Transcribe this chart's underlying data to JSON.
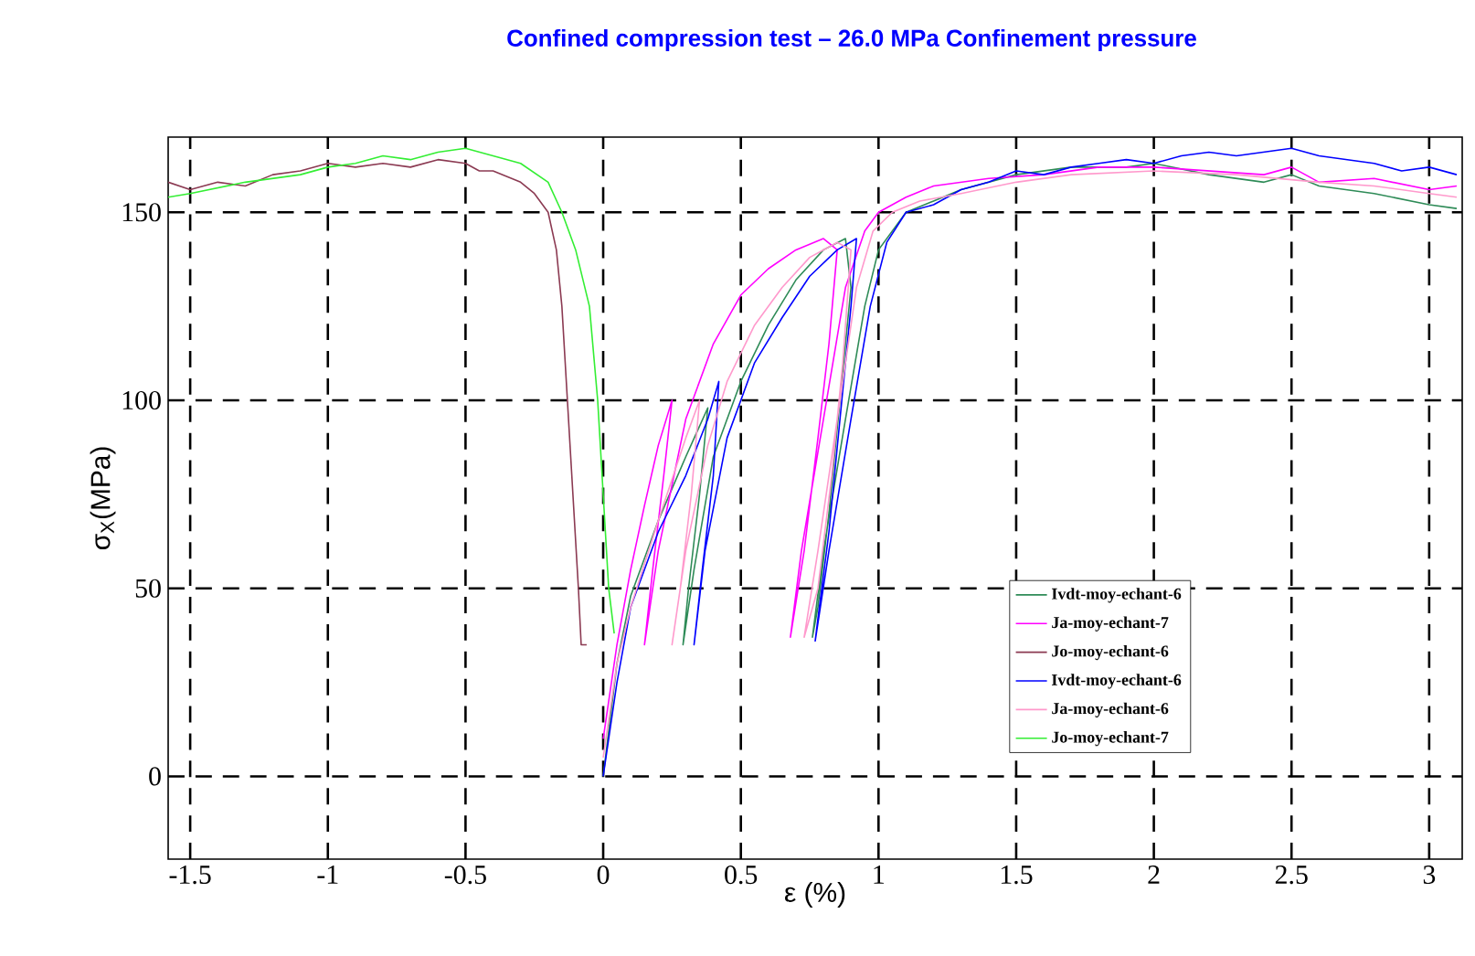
{
  "chart_data": {
    "type": "line",
    "title": "Confined compression test – 26.0 MPa Confinement pressure",
    "xlabel": "ε (%)",
    "ylabel": "σ$_{X}$(MPa)",
    "xlim": [
      -1.58,
      3.12
    ],
    "ylim": [
      -22,
      170
    ],
    "xticks": [
      -1.5,
      -1,
      -0.5,
      0,
      0.5,
      1,
      1.5,
      2,
      2.5,
      3
    ],
    "yticks": [
      0,
      50,
      100,
      150
    ],
    "grid": true,
    "legend": "right",
    "series": [
      {
        "name": "Ivdt-moy-echant-6",
        "color": "#2e8b57",
        "x": [
          0,
          0.05,
          0.1,
          0.2,
          0.3,
          0.38,
          0.35,
          0.31,
          0.29,
          0.33,
          0.4,
          0.5,
          0.6,
          0.7,
          0.8,
          0.88,
          0.9,
          0.86,
          0.82,
          0.78,
          0.76,
          0.8,
          0.88,
          0.95,
          1.0,
          1.1,
          1.2,
          1.3,
          1.4,
          1.5,
          1.7,
          1.9,
          2.0,
          2.2,
          2.4,
          2.5,
          2.6,
          2.8,
          3.0,
          3.1
        ],
        "values": [
          0,
          30,
          48,
          68,
          85,
          98,
          75,
          50,
          35,
          55,
          85,
          105,
          120,
          132,
          140,
          143,
          130,
          100,
          70,
          45,
          37,
          60,
          95,
          125,
          140,
          150,
          153,
          156,
          158,
          160,
          162,
          162,
          163,
          160,
          158,
          160,
          157,
          155,
          152,
          151
        ]
      },
      {
        "name": "Ja-moy-echant-7",
        "color": "#ff00ff",
        "x": [
          0,
          0.05,
          0.1,
          0.15,
          0.2,
          0.25,
          0.22,
          0.18,
          0.15,
          0.2,
          0.3,
          0.4,
          0.5,
          0.6,
          0.7,
          0.8,
          0.85,
          0.82,
          0.78,
          0.73,
          0.68,
          0.72,
          0.8,
          0.88,
          0.95,
          1.0,
          1.1,
          1.2,
          1.4,
          1.6,
          1.8,
          2.0,
          2.2,
          2.4,
          2.5,
          2.6,
          2.8,
          3.0,
          3.1
        ],
        "values": [
          10,
          35,
          55,
          72,
          88,
          100,
          80,
          55,
          35,
          60,
          95,
          115,
          128,
          135,
          140,
          143,
          140,
          115,
          90,
          60,
          37,
          60,
          95,
          130,
          145,
          150,
          154,
          157,
          159,
          160,
          162,
          162,
          161,
          160,
          162,
          158,
          159,
          156,
          157
        ]
      },
      {
        "name": "Jo-moy-echant-6",
        "color": "#8b3a52",
        "x": [
          -1.58,
          -1.5,
          -1.4,
          -1.3,
          -1.2,
          -1.1,
          -1.0,
          -0.9,
          -0.8,
          -0.7,
          -0.6,
          -0.5,
          -0.45,
          -0.4,
          -0.3,
          -0.25,
          -0.2,
          -0.17,
          -0.15,
          -0.13,
          -0.11,
          -0.09,
          -0.08,
          -0.06
        ],
        "values": [
          158,
          156,
          158,
          157,
          160,
          161,
          163,
          162,
          163,
          162,
          164,
          163,
          161,
          161,
          158,
          155,
          150,
          140,
          125,
          100,
          75,
          50,
          35,
          35
        ]
      },
      {
        "name": "Ivdt-moy-echant-6",
        "color": "#0000ff",
        "x": [
          0,
          0.05,
          0.1,
          0.2,
          0.3,
          0.38,
          0.42,
          0.4,
          0.36,
          0.33,
          0.37,
          0.45,
          0.55,
          0.65,
          0.75,
          0.85,
          0.92,
          0.9,
          0.86,
          0.82,
          0.78,
          0.77,
          0.82,
          0.9,
          0.97,
          1.03,
          1.1,
          1.2,
          1.3,
          1.4,
          1.5,
          1.6,
          1.7,
          1.8,
          1.9,
          2.0,
          2.1,
          2.2,
          2.3,
          2.5,
          2.6,
          2.7,
          2.8,
          2.9,
          3.0,
          3.1
        ],
        "values": [
          0,
          25,
          45,
          65,
          80,
          95,
          105,
          80,
          55,
          35,
          60,
          90,
          110,
          122,
          133,
          140,
          143,
          125,
          95,
          65,
          42,
          36,
          60,
          95,
          125,
          142,
          150,
          152,
          156,
          158,
          161,
          160,
          162,
          163,
          164,
          163,
          165,
          166,
          165,
          167,
          165,
          164,
          163,
          161,
          162,
          160
        ]
      },
      {
        "name": "Ja-moy-echant-6",
        "color": "#ff99cc",
        "x": [
          0,
          0.05,
          0.1,
          0.2,
          0.3,
          0.35,
          0.32,
          0.28,
          0.25,
          0.3,
          0.38,
          0.45,
          0.55,
          0.65,
          0.75,
          0.85,
          0.9,
          0.87,
          0.83,
          0.78,
          0.73,
          0.78,
          0.85,
          0.92,
          0.98,
          1.05,
          1.15,
          1.3,
          1.5,
          1.7,
          2.0,
          2.3,
          2.6,
          2.8,
          3.0,
          3.1
        ],
        "values": [
          5,
          30,
          45,
          68,
          90,
          100,
          75,
          50,
          35,
          60,
          88,
          105,
          120,
          130,
          138,
          142,
          140,
          110,
          80,
          50,
          37,
          60,
          95,
          130,
          145,
          150,
          153,
          155,
          158,
          160,
          161,
          160,
          158,
          157,
          155,
          154
        ]
      },
      {
        "name": "Jo-moy-echant-7",
        "color": "#33ee33",
        "x": [
          -1.58,
          -1.5,
          -1.3,
          -1.1,
          -1.0,
          -0.9,
          -0.8,
          -0.7,
          -0.6,
          -0.5,
          -0.4,
          -0.3,
          -0.2,
          -0.15,
          -0.1,
          -0.05,
          -0.02,
          0.0,
          0.02,
          0.04
        ],
        "values": [
          154,
          155,
          158,
          160,
          162,
          163,
          165,
          164,
          166,
          167,
          165,
          163,
          158,
          150,
          140,
          125,
          100,
          75,
          50,
          38
        ]
      }
    ]
  }
}
